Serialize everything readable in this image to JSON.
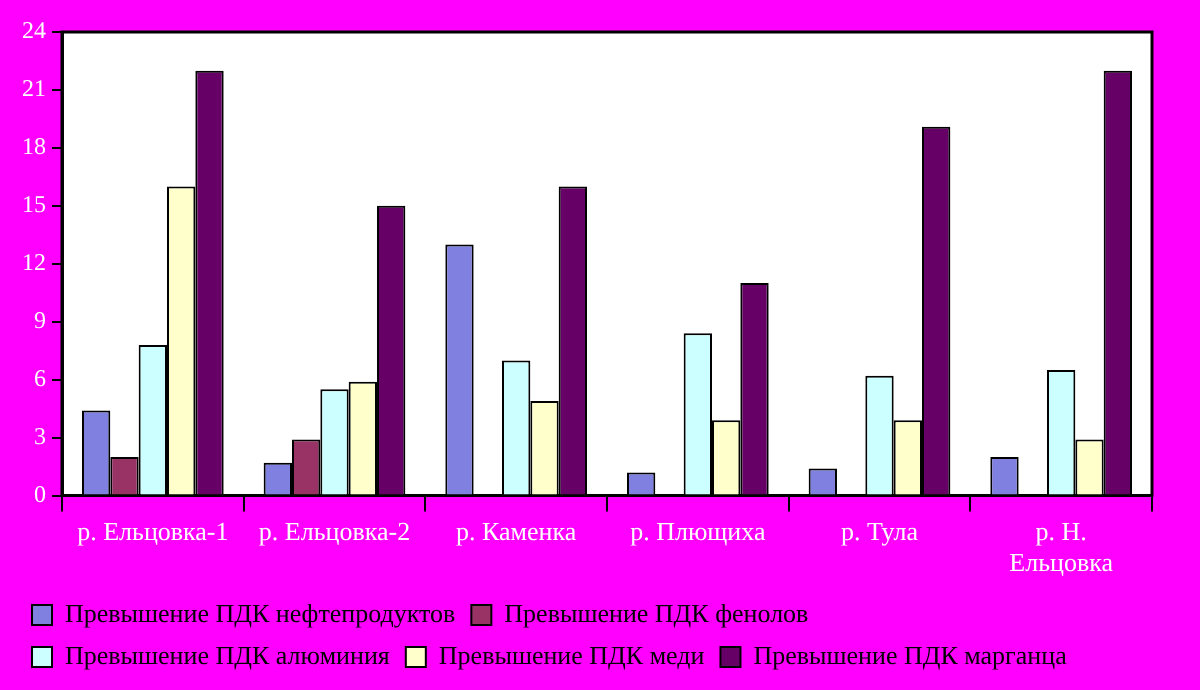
{
  "chart_data": {
    "type": "bar",
    "categories": [
      "р. Ельцовка-1",
      "р. Ельцовка-2",
      "р. Каменка",
      "р. Плющиха",
      "р. Тула",
      "р. Н. Ельцовка"
    ],
    "series": [
      {
        "name": "Превышение ПДК нефтепродуктов",
        "color": "#8080e0",
        "values": [
          4.4,
          1.7,
          13,
          1.2,
          1.4,
          2.0
        ]
      },
      {
        "name": "Превышение ПДК фенолов",
        "color": "#993366",
        "values": [
          2.0,
          2.9,
          null,
          null,
          null,
          null
        ]
      },
      {
        "name": "Превышение ПДК алюминия",
        "color": "#ccffff",
        "values": [
          7.8,
          5.5,
          7.0,
          8.4,
          6.2,
          6.5
        ]
      },
      {
        "name": "Превышение ПДК меди",
        "color": "#ffffcc",
        "values": [
          16.0,
          5.9,
          4.9,
          3.9,
          3.9,
          2.9
        ]
      },
      {
        "name": "Превышение ПДК марганца",
        "color": "#660066",
        "values": [
          22.0,
          15.0,
          16.0,
          11.0,
          19.1,
          22.0
        ]
      }
    ],
    "ylim": [
      0,
      24
    ],
    "yticks": [
      0,
      3,
      6,
      9,
      12,
      15,
      18,
      21,
      24
    ],
    "grid": false,
    "legend": "bottom"
  }
}
